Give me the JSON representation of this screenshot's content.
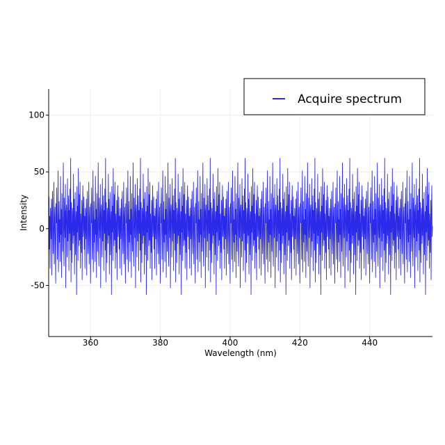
{
  "chart_data": {
    "type": "line",
    "title": "",
    "xlabel": "Wavelength (nm)",
    "ylabel": "Intensity",
    "xlim": [
      348,
      458
    ],
    "ylim": [
      -95,
      123
    ],
    "x_ticks": [
      360,
      380,
      400,
      420,
      440
    ],
    "y_ticks": [
      100,
      50,
      0,
      -50
    ],
    "grid": true,
    "legend_position": "top-right",
    "series": [
      {
        "name": "Acquire spectrum",
        "color": "#2a2ae8",
        "x_start": 348,
        "x_step": 0.1,
        "noise_mean": 0,
        "noise_std": 28,
        "y": [
          2,
          28,
          -18,
          11,
          -35,
          18,
          4,
          -9,
          26,
          -41,
          15,
          33,
          -6,
          -22,
          9,
          41,
          -31,
          7,
          19,
          -14,
          -48,
          22,
          5,
          36,
          -2,
          -27,
          13,
          51,
          -38,
          0,
          24,
          -12,
          8,
          -29,
          46,
          -5,
          17,
          -43,
          31,
          3,
          -20,
          12,
          58,
          -16,
          -33,
          27,
          6,
          -8,
          39,
          -52,
          14,
          21,
          -1,
          -25,
          44,
          -11,
          10,
          29,
          -37,
          16,
          -4,
          35,
          -19,
          62,
          -47,
          23,
          1,
          -30,
          18,
          9,
          -13,
          48,
          -6,
          26,
          -40,
          11,
          32,
          -23,
          4,
          15,
          -58,
          37,
          -3,
          20,
          -28,
          53,
          7,
          -15,
          30,
          -10,
          41,
          -35,
          13,
          2,
          -21,
          25,
          -45,
          17,
          38,
          -7
        ]
      }
    ]
  }
}
